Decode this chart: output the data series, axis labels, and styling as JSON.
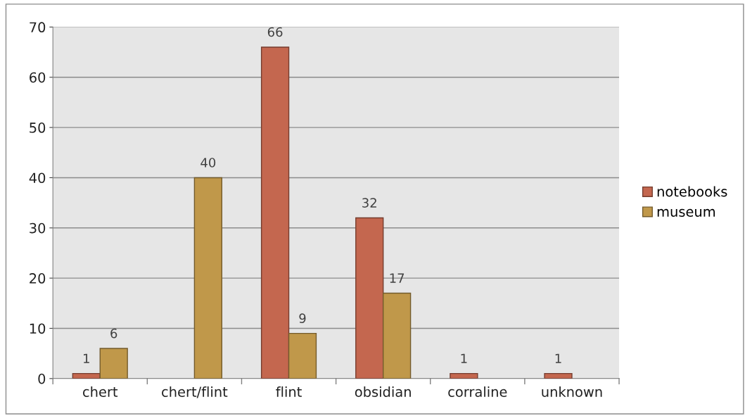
{
  "chart_data": {
    "type": "bar",
    "categories": [
      "chert",
      "chert/flint",
      "flint",
      "obsidian",
      "corraline",
      "unknown"
    ],
    "series": [
      {
        "name": "notebooks",
        "color": "#c4674f",
        "values": [
          1,
          null,
          66,
          32,
          1,
          1
        ]
      },
      {
        "name": "museum",
        "color": "#c0984a",
        "values": [
          6,
          40,
          9,
          17,
          null,
          null
        ]
      }
    ],
    "ylim": [
      0,
      70
    ],
    "yticks": [
      0,
      10,
      20,
      30,
      40,
      50,
      60,
      70
    ],
    "grid": "y",
    "legend": "right",
    "data_labels": true
  }
}
